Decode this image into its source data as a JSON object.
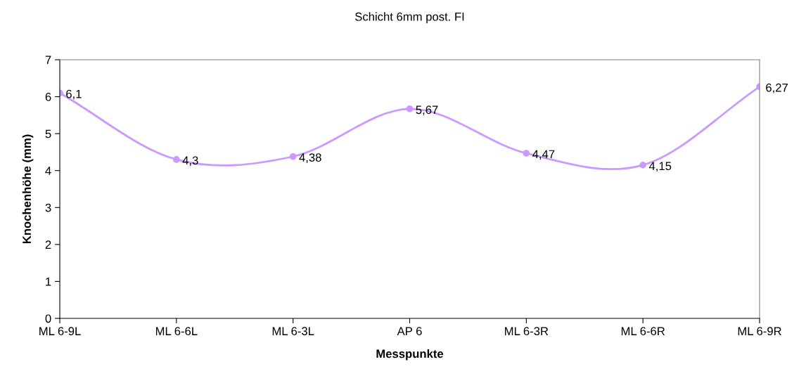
{
  "chart_data": {
    "type": "line",
    "title": "Schicht 6mm post. FI",
    "xlabel": "Messpunkte",
    "ylabel": "Knochenhöhe (mm)",
    "categories": [
      "ML 6-9L",
      "ML 6-6L",
      "ML 6-3L",
      "AP 6",
      "ML 6-3R",
      "ML 6-6R",
      "ML 6-9R"
    ],
    "series": [
      {
        "color": "#cc99ff",
        "values": [
          6.1,
          4.3,
          4.38,
          5.67,
          4.47,
          4.15,
          6.27
        ],
        "value_labels": [
          "6,1",
          "4,3",
          "4,38",
          "5,67",
          "4,47",
          "4,15",
          "6,27"
        ]
      }
    ],
    "ylim": [
      0,
      7
    ],
    "yticks": [
      0,
      1,
      2,
      3,
      4,
      5,
      6,
      7
    ],
    "marker": "circle",
    "line_style": "solid",
    "grid": false,
    "legend": false
  }
}
